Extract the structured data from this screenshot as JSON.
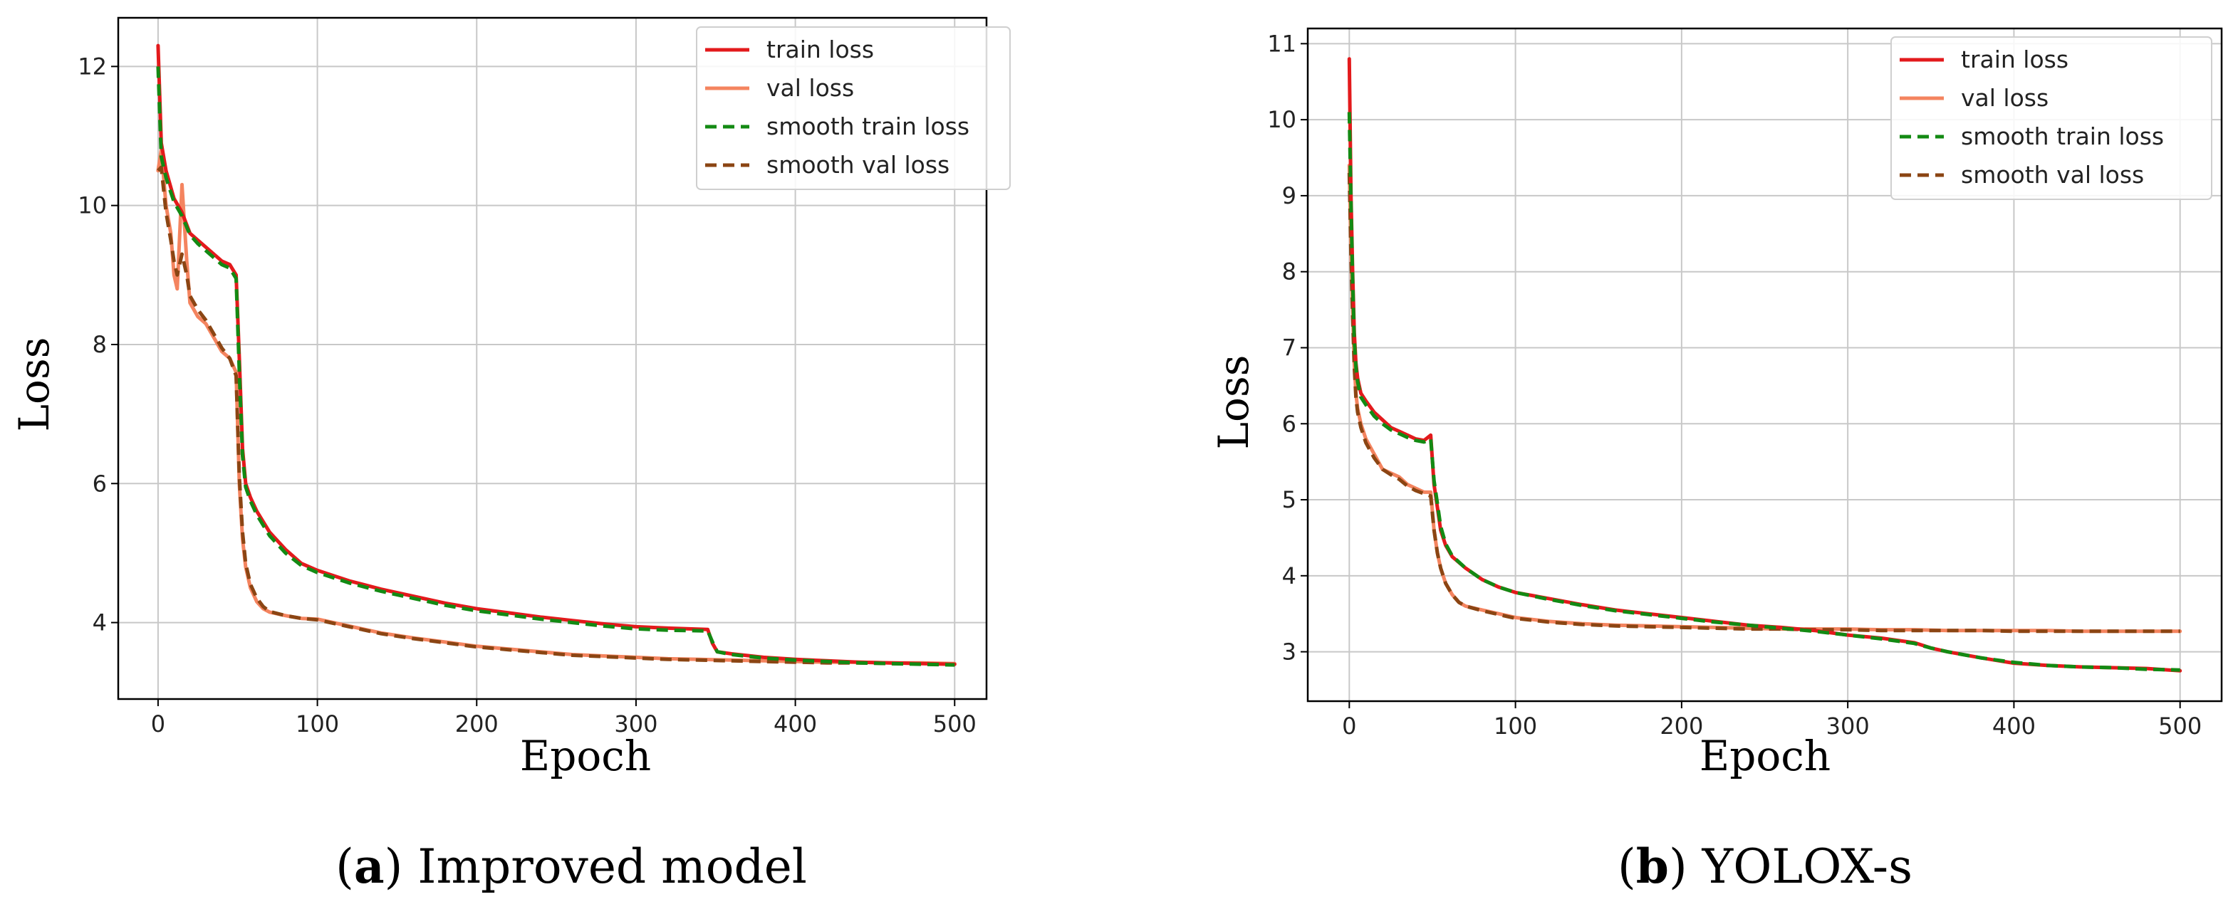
{
  "figure": {
    "captions": [
      {
        "open": "(",
        "letter": "a",
        "close": ")",
        "text": " Improved model"
      },
      {
        "open": "(",
        "letter": "b",
        "close": ")",
        "text": " YOLOX-s"
      }
    ]
  },
  "colors": {
    "train_loss": "#e31a1c",
    "val_loss": "#f4845f",
    "smooth_train_loss": "#138a13",
    "smooth_val_loss": "#8b4513",
    "grid": "#c8c8c8",
    "axes": "#000000"
  },
  "chart_data": [
    {
      "type": "line",
      "id": "a",
      "title": "",
      "xlabel": "Epoch",
      "ylabel": "Loss",
      "xlim": [
        -25,
        520
      ],
      "ylim": [
        2.9,
        12.7
      ],
      "xticks": [
        0,
        100,
        200,
        300,
        400,
        500
      ],
      "yticks": [
        4,
        6,
        8,
        10,
        12
      ],
      "grid": true,
      "legend_position": "top-right",
      "series": [
        {
          "name": "train loss",
          "style": "solid",
          "x": [
            0,
            2,
            5,
            10,
            15,
            20,
            25,
            30,
            35,
            40,
            45,
            49,
            51,
            53,
            55,
            58,
            62,
            70,
            80,
            90,
            100,
            120,
            140,
            160,
            180,
            200,
            220,
            240,
            260,
            280,
            300,
            320,
            345,
            348,
            351,
            360,
            380,
            400,
            420,
            440,
            460,
            480,
            500
          ],
          "y": [
            12.3,
            10.9,
            10.5,
            10.1,
            9.9,
            9.6,
            9.5,
            9.4,
            9.3,
            9.2,
            9.15,
            9.0,
            7.8,
            6.5,
            6.0,
            5.8,
            5.6,
            5.3,
            5.05,
            4.85,
            4.75,
            4.6,
            4.48,
            4.38,
            4.28,
            4.2,
            4.14,
            4.08,
            4.03,
            3.98,
            3.94,
            3.92,
            3.9,
            3.7,
            3.58,
            3.55,
            3.5,
            3.47,
            3.45,
            3.43,
            3.42,
            3.41,
            3.4
          ]
        },
        {
          "name": "val loss",
          "style": "solid",
          "x": [
            0,
            2,
            5,
            8,
            10,
            12,
            15,
            18,
            20,
            25,
            30,
            35,
            40,
            45,
            49,
            51,
            53,
            55,
            58,
            62,
            66,
            70,
            80,
            90,
            100,
            120,
            140,
            160,
            180,
            200,
            220,
            240,
            260,
            280,
            300,
            320,
            340,
            360,
            380,
            400,
            420,
            440,
            460,
            480,
            500
          ],
          "y": [
            10.5,
            10.8,
            10.0,
            9.6,
            9.0,
            8.8,
            10.3,
            9.2,
            8.6,
            8.4,
            8.3,
            8.1,
            7.9,
            7.8,
            7.6,
            6.0,
            5.2,
            4.8,
            4.5,
            4.3,
            4.2,
            4.15,
            4.1,
            4.06,
            4.05,
            3.95,
            3.85,
            3.78,
            3.72,
            3.66,
            3.62,
            3.58,
            3.54,
            3.52,
            3.5,
            3.48,
            3.47,
            3.46,
            3.45,
            3.44,
            3.43,
            3.43,
            3.42,
            3.42,
            3.41
          ]
        },
        {
          "name": "smooth train loss",
          "style": "dashed",
          "x": [
            0,
            2,
            5,
            10,
            15,
            20,
            25,
            30,
            35,
            40,
            45,
            49,
            51,
            53,
            55,
            58,
            62,
            70,
            80,
            90,
            100,
            120,
            140,
            160,
            180,
            200,
            220,
            240,
            260,
            280,
            300,
            320,
            345,
            348,
            351,
            360,
            380,
            400,
            420,
            440,
            460,
            480,
            500
          ],
          "y": [
            12.0,
            10.7,
            10.4,
            10.05,
            9.85,
            9.58,
            9.45,
            9.35,
            9.25,
            9.15,
            9.1,
            8.95,
            7.6,
            6.4,
            5.95,
            5.75,
            5.55,
            5.25,
            5.0,
            4.82,
            4.72,
            4.57,
            4.45,
            4.35,
            4.25,
            4.17,
            4.11,
            4.05,
            4.0,
            3.95,
            3.91,
            3.89,
            3.88,
            3.72,
            3.58,
            3.54,
            3.49,
            3.46,
            3.44,
            3.42,
            3.41,
            3.4,
            3.39
          ]
        },
        {
          "name": "smooth val loss",
          "style": "dashed",
          "x": [
            0,
            2,
            5,
            8,
            10,
            12,
            15,
            18,
            20,
            25,
            30,
            35,
            40,
            45,
            49,
            51,
            53,
            55,
            58,
            62,
            66,
            70,
            80,
            90,
            100,
            120,
            140,
            160,
            180,
            200,
            220,
            240,
            260,
            280,
            300,
            320,
            340,
            360,
            380,
            400,
            420,
            440,
            460,
            480,
            500
          ],
          "y": [
            10.5,
            10.55,
            9.9,
            9.5,
            9.2,
            9.0,
            9.3,
            9.0,
            8.7,
            8.5,
            8.35,
            8.15,
            7.95,
            7.8,
            7.55,
            6.1,
            5.3,
            4.85,
            4.55,
            4.35,
            4.23,
            4.16,
            4.1,
            4.06,
            4.04,
            3.94,
            3.84,
            3.77,
            3.71,
            3.65,
            3.61,
            3.57,
            3.53,
            3.51,
            3.49,
            3.47,
            3.46,
            3.45,
            3.44,
            3.43,
            3.42,
            3.42,
            3.41,
            3.41,
            3.4
          ]
        }
      ]
    },
    {
      "type": "line",
      "id": "b",
      "title": "",
      "xlabel": "Epoch",
      "ylabel": "Loss",
      "xlim": [
        -25,
        525
      ],
      "ylim": [
        2.35,
        11.2
      ],
      "xticks": [
        0,
        100,
        200,
        300,
        400,
        500
      ],
      "yticks": [
        3,
        4,
        5,
        6,
        7,
        8,
        9,
        10,
        11
      ],
      "grid": true,
      "legend_position": "top-right",
      "series": [
        {
          "name": "train loss",
          "style": "solid",
          "x": [
            0,
            1,
            2,
            3,
            4,
            5,
            7,
            10,
            15,
            20,
            25,
            30,
            35,
            40,
            45,
            49,
            51,
            53,
            55,
            58,
            62,
            70,
            80,
            90,
            100,
            120,
            140,
            160,
            180,
            200,
            220,
            240,
            260,
            280,
            300,
            320,
            340,
            350,
            360,
            380,
            400,
            420,
            440,
            460,
            480,
            500
          ],
          "y": [
            10.8,
            9.0,
            8.0,
            7.2,
            6.8,
            6.6,
            6.4,
            6.3,
            6.15,
            6.05,
            5.95,
            5.9,
            5.85,
            5.8,
            5.78,
            5.85,
            5.2,
            4.9,
            4.6,
            4.4,
            4.25,
            4.1,
            3.95,
            3.85,
            3.78,
            3.7,
            3.62,
            3.55,
            3.5,
            3.45,
            3.4,
            3.35,
            3.32,
            3.28,
            3.22,
            3.18,
            3.12,
            3.05,
            3.0,
            2.92,
            2.85,
            2.82,
            2.8,
            2.79,
            2.78,
            2.75
          ]
        },
        {
          "name": "val loss",
          "style": "solid",
          "x": [
            0,
            1,
            2,
            3,
            4,
            5,
            7,
            10,
            15,
            20,
            25,
            30,
            35,
            40,
            45,
            49,
            51,
            53,
            55,
            58,
            62,
            66,
            70,
            80,
            90,
            100,
            120,
            140,
            160,
            180,
            200,
            220,
            240,
            260,
            280,
            300,
            320,
            340,
            360,
            380,
            400,
            420,
            440,
            460,
            480,
            500
          ],
          "y": [
            9.4,
            8.3,
            7.5,
            6.8,
            6.4,
            6.2,
            6.0,
            5.8,
            5.6,
            5.4,
            5.35,
            5.3,
            5.2,
            5.15,
            5.1,
            5.1,
            4.6,
            4.3,
            4.1,
            3.9,
            3.75,
            3.65,
            3.6,
            3.55,
            3.5,
            3.45,
            3.4,
            3.37,
            3.35,
            3.34,
            3.33,
            3.32,
            3.31,
            3.3,
            3.3,
            3.3,
            3.29,
            3.29,
            3.28,
            3.28,
            3.28,
            3.28,
            3.27,
            3.27,
            3.27,
            3.27
          ]
        },
        {
          "name": "smooth train loss",
          "style": "dashed",
          "x": [
            0,
            1,
            2,
            3,
            4,
            5,
            7,
            10,
            15,
            20,
            25,
            30,
            35,
            40,
            45,
            49,
            51,
            53,
            55,
            58,
            62,
            70,
            80,
            90,
            100,
            120,
            140,
            160,
            180,
            200,
            220,
            240,
            260,
            280,
            300,
            320,
            340,
            350,
            360,
            380,
            400,
            420,
            440,
            460,
            480,
            500
          ],
          "y": [
            10.1,
            8.9,
            7.9,
            7.1,
            6.75,
            6.55,
            6.35,
            6.25,
            6.1,
            6.0,
            5.92,
            5.87,
            5.82,
            5.78,
            5.76,
            5.8,
            5.25,
            4.95,
            4.65,
            4.42,
            4.26,
            4.1,
            3.95,
            3.85,
            3.78,
            3.69,
            3.61,
            3.54,
            3.49,
            3.44,
            3.39,
            3.35,
            3.31,
            3.27,
            3.22,
            3.17,
            3.11,
            3.05,
            3.0,
            2.92,
            2.86,
            2.82,
            2.8,
            2.79,
            2.77,
            2.76
          ]
        },
        {
          "name": "smooth val loss",
          "style": "dashed",
          "x": [
            0,
            1,
            2,
            3,
            4,
            5,
            7,
            10,
            15,
            20,
            25,
            30,
            35,
            40,
            45,
            49,
            51,
            53,
            55,
            58,
            62,
            66,
            70,
            80,
            90,
            100,
            120,
            140,
            160,
            180,
            200,
            220,
            240,
            260,
            280,
            300,
            320,
            340,
            360,
            380,
            400,
            420,
            440,
            460,
            480,
            500
          ],
          "y": [
            9.3,
            8.2,
            7.4,
            6.75,
            6.35,
            6.15,
            5.95,
            5.75,
            5.55,
            5.4,
            5.33,
            5.27,
            5.18,
            5.12,
            5.08,
            5.05,
            4.6,
            4.3,
            4.1,
            3.9,
            3.75,
            3.65,
            3.6,
            3.54,
            3.49,
            3.44,
            3.39,
            3.36,
            3.34,
            3.33,
            3.32,
            3.31,
            3.3,
            3.3,
            3.29,
            3.29,
            3.28,
            3.28,
            3.28,
            3.28,
            3.27,
            3.27,
            3.27,
            3.27,
            3.27,
            3.27
          ]
        }
      ]
    }
  ]
}
